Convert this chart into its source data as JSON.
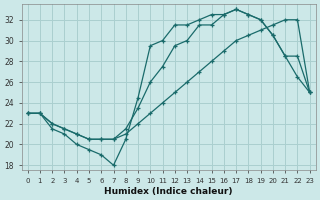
{
  "xlabel": "Humidex (Indice chaleur)",
  "bg_color": "#cce8e8",
  "grid_color": "#aacfcf",
  "line_color": "#1a6b6b",
  "xlim": [
    -0.5,
    23.5
  ],
  "ylim": [
    17.5,
    33.5
  ],
  "xticks": [
    0,
    1,
    2,
    3,
    4,
    5,
    6,
    7,
    8,
    9,
    10,
    11,
    12,
    13,
    14,
    15,
    16,
    17,
    18,
    19,
    20,
    21,
    22,
    23
  ],
  "yticks": [
    18,
    20,
    22,
    24,
    26,
    28,
    30,
    32
  ],
  "line1_x": [
    0,
    1,
    2,
    3,
    4,
    5,
    6,
    7,
    8,
    9,
    10,
    11,
    12,
    13,
    14,
    15,
    16,
    17,
    18,
    19,
    20,
    21,
    22,
    23
  ],
  "line1_y": [
    23,
    23,
    22,
    21.5,
    21,
    20.5,
    20.5,
    20.5,
    21,
    22,
    23,
    24,
    25,
    26,
    27,
    28,
    29,
    30,
    30.5,
    31,
    31.5,
    32,
    32,
    25
  ],
  "line2_x": [
    0,
    1,
    2,
    3,
    4,
    5,
    6,
    7,
    8,
    9,
    10,
    11,
    12,
    13,
    14,
    15,
    16,
    17,
    18,
    19,
    20,
    21,
    22,
    23
  ],
  "line2_y": [
    23,
    23,
    22,
    21.5,
    21,
    20.5,
    20.5,
    20.5,
    21.5,
    23.5,
    26,
    27.5,
    29.5,
    30,
    31.5,
    31.5,
    32.5,
    33,
    32.5,
    32,
    30.5,
    28.5,
    28.5,
    25
  ],
  "line3_x": [
    0,
    1,
    2,
    3,
    4,
    5,
    6,
    7,
    8,
    9,
    10,
    11,
    12,
    13,
    14,
    15,
    16,
    17,
    18,
    19,
    20,
    21,
    22,
    23
  ],
  "line3_y": [
    23,
    23,
    21.5,
    21,
    20,
    19.5,
    19,
    18,
    20.5,
    24.5,
    29.5,
    30,
    31.5,
    31.5,
    32,
    32.5,
    32.5,
    33,
    32.5,
    32,
    30.5,
    28.5,
    26.5,
    25
  ]
}
